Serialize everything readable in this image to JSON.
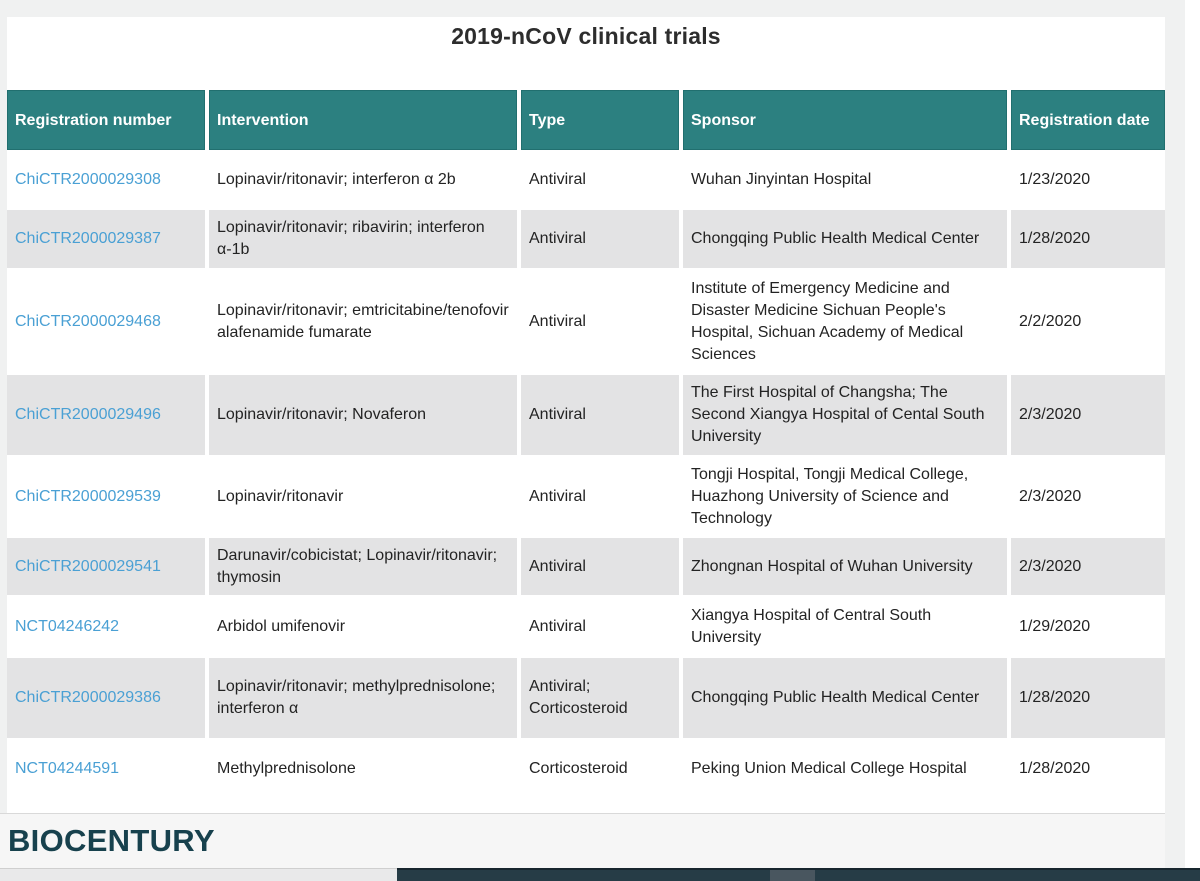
{
  "page": {
    "title": "2019-nCoV clinical trials"
  },
  "table": {
    "headers": [
      "Registration number",
      "Intervention",
      "Type",
      "Sponsor",
      "Registration date"
    ],
    "rows": [
      {
        "registration_number": "ChiCTR2000029308",
        "intervention": "Lopinavir/ritonavir; interferon α 2b",
        "type": "Antiviral",
        "sponsor": "Wuhan Jinyintan Hospital",
        "registration_date": "1/23/2020"
      },
      {
        "registration_number": "ChiCTR2000029387",
        "intervention": "Lopinavir/ritonavir; ribavirin; interferon α-1b",
        "type": "Antiviral",
        "sponsor": "Chongqing Public Health Medical Center",
        "registration_date": "1/28/2020"
      },
      {
        "registration_number": "ChiCTR2000029468",
        "intervention": "Lopinavir/ritonavir; emtricitabine/tenofovir alafenamide fumarate",
        "type": "Antiviral",
        "sponsor": "Institute of Emergency Medicine and Disaster Medicine Sichuan People's Hospital, Sichuan Academy of Medical Sciences",
        "registration_date": "2/2/2020"
      },
      {
        "registration_number": "ChiCTR2000029496",
        "intervention": "Lopinavir/ritonavir; Novaferon",
        "type": "Antiviral",
        "sponsor": "The First Hospital of Changsha; The Second Xiangya Hospital of Cental South University",
        "registration_date": "2/3/2020"
      },
      {
        "registration_number": "ChiCTR2000029539",
        "intervention": "Lopinavir/ritonavir",
        "type": "Antiviral",
        "sponsor": "Tongji Hospital, Tongji Medical College, Huazhong University of Science and Technology",
        "registration_date": "2/3/2020"
      },
      {
        "registration_number": "ChiCTR2000029541",
        "intervention": "Darunavir/cobicistat; Lopinavir/ritonavir; thymosin",
        "type": "Antiviral",
        "sponsor": "Zhongnan Hospital of Wuhan University",
        "registration_date": "2/3/2020"
      },
      {
        "registration_number": "NCT04246242",
        "intervention": "Arbidol umifenovir",
        "type": "Antiviral",
        "sponsor": "Xiangya Hospital of Central South University",
        "registration_date": "1/29/2020"
      },
      {
        "registration_number": "ChiCTR2000029386",
        "intervention": "Lopinavir/ritonavir; methylprednisolone; interferon α",
        "type": "Antiviral; Corticosteroid",
        "sponsor": "Chongqing Public Health Medical Center",
        "registration_date": "1/28/2020"
      },
      {
        "registration_number": "NCT04244591",
        "intervention": "Methylprednisolone",
        "type": "Corticosteroid",
        "sponsor": "Peking Union Medical College Hospital",
        "registration_date": "1/28/2020"
      }
    ]
  },
  "footer": {
    "brand": "BIOCENTURY"
  },
  "colors": {
    "header_teal": "#2c8080",
    "link_blue": "#4aa0d4",
    "row_alt_gray": "#e3e3e4",
    "brand_teal": "#17414d"
  }
}
